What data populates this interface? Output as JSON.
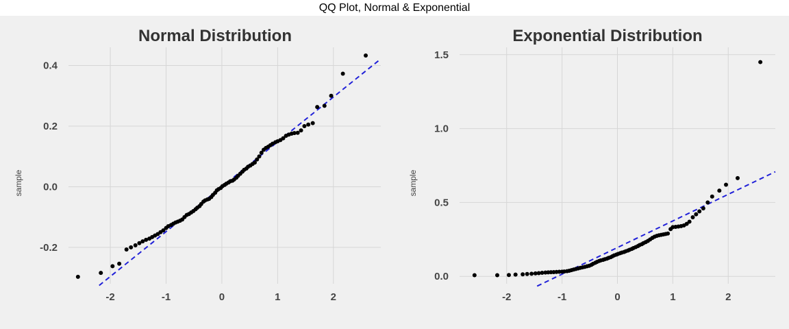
{
  "figure": {
    "suptitle": "QQ Plot, Normal & Exponential"
  },
  "chart_data": [
    {
      "type": "scatter",
      "title": "Normal Distribution",
      "xlabel": "",
      "ylabel": "sample",
      "xlim": [
        -2.75,
        2.85
      ],
      "ylim": [
        -0.32,
        0.46
      ],
      "xticks": [
        -2,
        -1,
        0,
        1,
        2
      ],
      "xtick_labels": [
        "-2",
        "-1",
        "0",
        "1",
        "2"
      ],
      "yticks": [
        -0.2,
        0.0,
        0.2,
        0.4
      ],
      "ytick_labels": [
        "-0.2",
        "0.0",
        "0.2",
        "0.4"
      ],
      "grid": true,
      "reference_line": {
        "slope": 0.148,
        "intercept": 0.0,
        "x_range": [
          -2.2,
          2.85
        ],
        "style": "dashed",
        "color": "#2020d8"
      },
      "points": [
        {
          "x": -2.58,
          "y": -0.297
        },
        {
          "x": -2.17,
          "y": -0.284
        },
        {
          "x": -1.96,
          "y": -0.262
        },
        {
          "x": -1.84,
          "y": -0.254
        },
        {
          "x": -1.71,
          "y": -0.207
        },
        {
          "x": -1.63,
          "y": -0.2
        },
        {
          "x": -1.55,
          "y": -0.193
        },
        {
          "x": -1.48,
          "y": -0.186
        },
        {
          "x": -1.42,
          "y": -0.18
        },
        {
          "x": -1.36,
          "y": -0.175
        },
        {
          "x": -1.3,
          "y": -0.171
        },
        {
          "x": -1.25,
          "y": -0.166
        },
        {
          "x": -1.2,
          "y": -0.161
        },
        {
          "x": -1.15,
          "y": -0.156
        },
        {
          "x": -1.1,
          "y": -0.15
        },
        {
          "x": -1.05,
          "y": -0.144
        },
        {
          "x": -1.0,
          "y": -0.136
        },
        {
          "x": -0.96,
          "y": -0.13
        },
        {
          "x": -0.91,
          "y": -0.126
        },
        {
          "x": -0.87,
          "y": -0.122
        },
        {
          "x": -0.83,
          "y": -0.118
        },
        {
          "x": -0.79,
          "y": -0.115
        },
        {
          "x": -0.75,
          "y": -0.112
        },
        {
          "x": -0.71,
          "y": -0.108
        },
        {
          "x": -0.67,
          "y": -0.1
        },
        {
          "x": -0.63,
          "y": -0.093
        },
        {
          "x": -0.59,
          "y": -0.09
        },
        {
          "x": -0.55,
          "y": -0.085
        },
        {
          "x": -0.51,
          "y": -0.08
        },
        {
          "x": -0.47,
          "y": -0.074
        },
        {
          "x": -0.44,
          "y": -0.069
        },
        {
          "x": -0.4,
          "y": -0.064
        },
        {
          "x": -0.37,
          "y": -0.057
        },
        {
          "x": -0.33,
          "y": -0.049
        },
        {
          "x": -0.3,
          "y": -0.045
        },
        {
          "x": -0.26,
          "y": -0.042
        },
        {
          "x": -0.23,
          "y": -0.04
        },
        {
          "x": -0.19,
          "y": -0.034
        },
        {
          "x": -0.16,
          "y": -0.027
        },
        {
          "x": -0.12,
          "y": -0.02
        },
        {
          "x": -0.09,
          "y": -0.012
        },
        {
          "x": -0.06,
          "y": -0.008
        },
        {
          "x": -0.02,
          "y": -0.004
        },
        {
          "x": 0.01,
          "y": 0.002
        },
        {
          "x": 0.05,
          "y": 0.006
        },
        {
          "x": 0.08,
          "y": 0.01
        },
        {
          "x": 0.12,
          "y": 0.014
        },
        {
          "x": 0.15,
          "y": 0.018
        },
        {
          "x": 0.19,
          "y": 0.02
        },
        {
          "x": 0.22,
          "y": 0.024
        },
        {
          "x": 0.26,
          "y": 0.03
        },
        {
          "x": 0.29,
          "y": 0.036
        },
        {
          "x": 0.33,
          "y": 0.043
        },
        {
          "x": 0.37,
          "y": 0.05
        },
        {
          "x": 0.4,
          "y": 0.056
        },
        {
          "x": 0.44,
          "y": 0.06
        },
        {
          "x": 0.47,
          "y": 0.066
        },
        {
          "x": 0.51,
          "y": 0.07
        },
        {
          "x": 0.55,
          "y": 0.075
        },
        {
          "x": 0.59,
          "y": 0.08
        },
        {
          "x": 0.63,
          "y": 0.09
        },
        {
          "x": 0.67,
          "y": 0.1
        },
        {
          "x": 0.71,
          "y": 0.112
        },
        {
          "x": 0.75,
          "y": 0.122
        },
        {
          "x": 0.79,
          "y": 0.128
        },
        {
          "x": 0.83,
          "y": 0.132
        },
        {
          "x": 0.87,
          "y": 0.137
        },
        {
          "x": 0.91,
          "y": 0.142
        },
        {
          "x": 0.96,
          "y": 0.147
        },
        {
          "x": 1.0,
          "y": 0.15
        },
        {
          "x": 1.05,
          "y": 0.154
        },
        {
          "x": 1.1,
          "y": 0.16
        },
        {
          "x": 1.15,
          "y": 0.168
        },
        {
          "x": 1.2,
          "y": 0.172
        },
        {
          "x": 1.25,
          "y": 0.175
        },
        {
          "x": 1.3,
          "y": 0.177
        },
        {
          "x": 1.36,
          "y": 0.178
        },
        {
          "x": 1.42,
          "y": 0.186
        },
        {
          "x": 1.48,
          "y": 0.2
        },
        {
          "x": 1.55,
          "y": 0.205
        },
        {
          "x": 1.63,
          "y": 0.21
        },
        {
          "x": 1.71,
          "y": 0.263
        },
        {
          "x": 1.84,
          "y": 0.267
        },
        {
          "x": 1.96,
          "y": 0.3
        },
        {
          "x": 2.17,
          "y": 0.373
        },
        {
          "x": 2.58,
          "y": 0.433
        }
      ]
    },
    {
      "type": "scatter",
      "title": "Exponential Distribution",
      "xlabel": "",
      "ylabel": "sample",
      "xlim": [
        -2.85,
        2.85
      ],
      "ylim": [
        -0.05,
        1.55
      ],
      "xticks": [
        -2,
        -1,
        0,
        1,
        2
      ],
      "xtick_labels": [
        "-2",
        "-1",
        "0",
        "1",
        "2"
      ],
      "yticks": [
        0.0,
        0.5,
        1.0,
        1.5
      ],
      "ytick_labels": [
        "0.0",
        "0.5",
        "1.0",
        "1.5"
      ],
      "grid": true,
      "reference_line": {
        "slope": 0.18,
        "intercept": 0.195,
        "x_range": [
          -1.45,
          2.85
        ],
        "style": "dashed",
        "color": "#2020d8"
      },
      "points": [
        {
          "x": -2.58,
          "y": 0.008
        },
        {
          "x": -2.17,
          "y": 0.008
        },
        {
          "x": -1.96,
          "y": 0.009
        },
        {
          "x": -1.84,
          "y": 0.012
        },
        {
          "x": -1.71,
          "y": 0.014
        },
        {
          "x": -1.63,
          "y": 0.016
        },
        {
          "x": -1.55,
          "y": 0.018
        },
        {
          "x": -1.48,
          "y": 0.02
        },
        {
          "x": -1.42,
          "y": 0.022
        },
        {
          "x": -1.36,
          "y": 0.024
        },
        {
          "x": -1.3,
          "y": 0.026
        },
        {
          "x": -1.25,
          "y": 0.027
        },
        {
          "x": -1.2,
          "y": 0.028
        },
        {
          "x": -1.15,
          "y": 0.029
        },
        {
          "x": -1.1,
          "y": 0.03
        },
        {
          "x": -1.05,
          "y": 0.031
        },
        {
          "x": -1.0,
          "y": 0.032
        },
        {
          "x": -0.96,
          "y": 0.033
        },
        {
          "x": -0.91,
          "y": 0.035
        },
        {
          "x": -0.87,
          "y": 0.038
        },
        {
          "x": -0.83,
          "y": 0.042
        },
        {
          "x": -0.79,
          "y": 0.046
        },
        {
          "x": -0.75,
          "y": 0.05
        },
        {
          "x": -0.71,
          "y": 0.054
        },
        {
          "x": -0.67,
          "y": 0.058
        },
        {
          "x": -0.63,
          "y": 0.061
        },
        {
          "x": -0.59,
          "y": 0.064
        },
        {
          "x": -0.55,
          "y": 0.068
        },
        {
          "x": -0.51,
          "y": 0.072
        },
        {
          "x": -0.47,
          "y": 0.078
        },
        {
          "x": -0.44,
          "y": 0.085
        },
        {
          "x": -0.4,
          "y": 0.092
        },
        {
          "x": -0.37,
          "y": 0.098
        },
        {
          "x": -0.33,
          "y": 0.104
        },
        {
          "x": -0.3,
          "y": 0.108
        },
        {
          "x": -0.26,
          "y": 0.112
        },
        {
          "x": -0.23,
          "y": 0.116
        },
        {
          "x": -0.19,
          "y": 0.12
        },
        {
          "x": -0.16,
          "y": 0.125
        },
        {
          "x": -0.12,
          "y": 0.13
        },
        {
          "x": -0.09,
          "y": 0.136
        },
        {
          "x": -0.06,
          "y": 0.142
        },
        {
          "x": -0.02,
          "y": 0.147
        },
        {
          "x": 0.01,
          "y": 0.152
        },
        {
          "x": 0.05,
          "y": 0.157
        },
        {
          "x": 0.08,
          "y": 0.161
        },
        {
          "x": 0.12,
          "y": 0.165
        },
        {
          "x": 0.15,
          "y": 0.17
        },
        {
          "x": 0.19,
          "y": 0.175
        },
        {
          "x": 0.22,
          "y": 0.18
        },
        {
          "x": 0.26,
          "y": 0.186
        },
        {
          "x": 0.29,
          "y": 0.192
        },
        {
          "x": 0.33,
          "y": 0.198
        },
        {
          "x": 0.37,
          "y": 0.205
        },
        {
          "x": 0.4,
          "y": 0.212
        },
        {
          "x": 0.44,
          "y": 0.218
        },
        {
          "x": 0.47,
          "y": 0.225
        },
        {
          "x": 0.51,
          "y": 0.232
        },
        {
          "x": 0.55,
          "y": 0.24
        },
        {
          "x": 0.59,
          "y": 0.25
        },
        {
          "x": 0.63,
          "y": 0.26
        },
        {
          "x": 0.67,
          "y": 0.268
        },
        {
          "x": 0.71,
          "y": 0.274
        },
        {
          "x": 0.75,
          "y": 0.278
        },
        {
          "x": 0.79,
          "y": 0.281
        },
        {
          "x": 0.83,
          "y": 0.284
        },
        {
          "x": 0.87,
          "y": 0.287
        },
        {
          "x": 0.91,
          "y": 0.29
        },
        {
          "x": 0.96,
          "y": 0.32
        },
        {
          "x": 1.0,
          "y": 0.333
        },
        {
          "x": 1.05,
          "y": 0.335
        },
        {
          "x": 1.1,
          "y": 0.337
        },
        {
          "x": 1.15,
          "y": 0.34
        },
        {
          "x": 1.2,
          "y": 0.345
        },
        {
          "x": 1.25,
          "y": 0.355
        },
        {
          "x": 1.3,
          "y": 0.37
        },
        {
          "x": 1.36,
          "y": 0.4
        },
        {
          "x": 1.42,
          "y": 0.42
        },
        {
          "x": 1.48,
          "y": 0.44
        },
        {
          "x": 1.55,
          "y": 0.46
        },
        {
          "x": 1.63,
          "y": 0.5
        },
        {
          "x": 1.71,
          "y": 0.54
        },
        {
          "x": 1.84,
          "y": 0.58
        },
        {
          "x": 1.96,
          "y": 0.62
        },
        {
          "x": 2.17,
          "y": 0.665
        },
        {
          "x": 2.58,
          "y": 1.45
        }
      ]
    }
  ]
}
